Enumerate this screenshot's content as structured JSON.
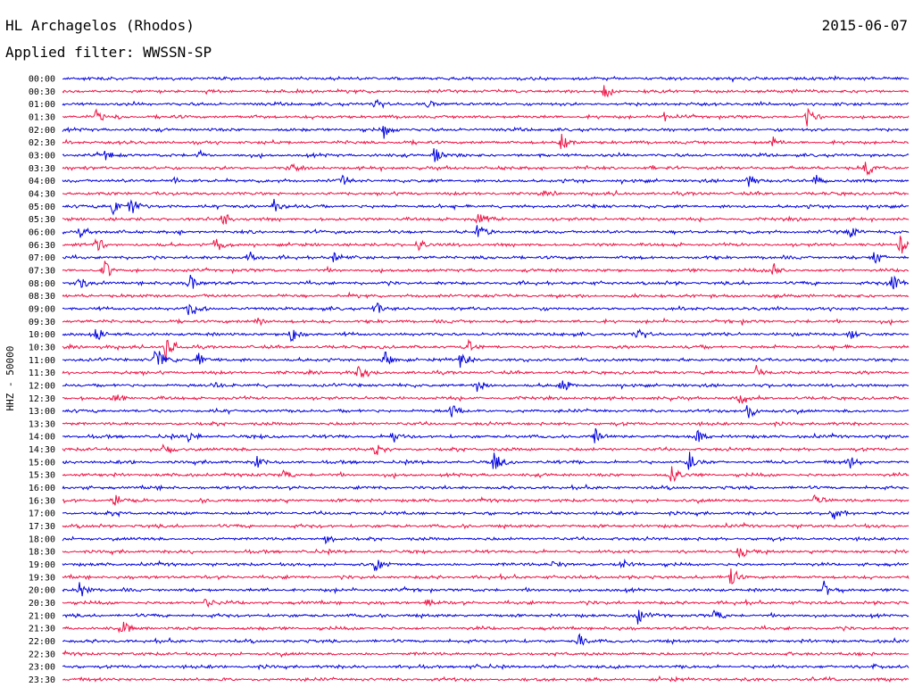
{
  "header": {
    "station": "HL Archagelos (Rhodos)",
    "date": "2015-06-07",
    "filter": "Applied filter: WWSSN-SP"
  },
  "colors": {
    "trace_odd": "#0000dd",
    "trace_even": "#ee1144",
    "background": "#ffffff"
  },
  "chart_data": {
    "type": "line",
    "ylabel": "HHZ - 50000",
    "xlabel": "",
    "grid": false,
    "legend": "none",
    "series_colors_alternate": [
      "#0000dd",
      "#ee1144"
    ],
    "rows": [
      "00:00",
      "00:30",
      "01:00",
      "01:30",
      "02:00",
      "02:30",
      "03:00",
      "03:30",
      "04:00",
      "04:30",
      "05:00",
      "05:30",
      "06:00",
      "06:30",
      "07:00",
      "07:30",
      "08:00",
      "08:30",
      "09:00",
      "09:30",
      "10:00",
      "10:30",
      "11:00",
      "11:30",
      "12:00",
      "12:30",
      "13:00",
      "13:30",
      "14:00",
      "14:30",
      "15:00",
      "15:30",
      "16:00",
      "16:30",
      "17:00",
      "17:30",
      "18:00",
      "18:30",
      "19:00",
      "19:30",
      "20:00",
      "20:30",
      "21:00",
      "21:30",
      "22:00",
      "22:30",
      "23:00",
      "23:30"
    ],
    "events": [
      {
        "row": "00:30",
        "t": 0.64,
        "amp": 0.9
      },
      {
        "row": "01:00",
        "t": 0.37,
        "amp": 0.8
      },
      {
        "row": "01:00",
        "t": 0.43,
        "amp": 0.6
      },
      {
        "row": "01:30",
        "t": 0.04,
        "amp": 0.7
      },
      {
        "row": "01:30",
        "t": 0.71,
        "amp": 0.5
      },
      {
        "row": "01:30",
        "t": 0.88,
        "amp": 1.0
      },
      {
        "row": "02:00",
        "t": 0.38,
        "amp": 1.0
      },
      {
        "row": "02:30",
        "t": 0.59,
        "amp": 1.0
      },
      {
        "row": "02:30",
        "t": 0.84,
        "amp": 0.6
      },
      {
        "row": "03:00",
        "t": 0.05,
        "amp": 0.5
      },
      {
        "row": "03:00",
        "t": 0.16,
        "amp": 0.5
      },
      {
        "row": "03:00",
        "t": 0.44,
        "amp": 0.9
      },
      {
        "row": "03:30",
        "t": 0.27,
        "amp": 0.5
      },
      {
        "row": "03:30",
        "t": 0.95,
        "amp": 1.0
      },
      {
        "row": "04:00",
        "t": 0.13,
        "amp": 0.5
      },
      {
        "row": "04:00",
        "t": 0.33,
        "amp": 0.6
      },
      {
        "row": "04:00",
        "t": 0.81,
        "amp": 0.8
      },
      {
        "row": "04:00",
        "t": 0.89,
        "amp": 0.7
      },
      {
        "row": "05:00",
        "t": 0.06,
        "amp": 0.8
      },
      {
        "row": "05:00",
        "t": 0.08,
        "amp": 1.0
      },
      {
        "row": "05:00",
        "t": 0.25,
        "amp": 0.7
      },
      {
        "row": "05:30",
        "t": 0.19,
        "amp": 0.8
      },
      {
        "row": "05:30",
        "t": 0.49,
        "amp": 0.9
      },
      {
        "row": "06:00",
        "t": 0.02,
        "amp": 0.6
      },
      {
        "row": "06:00",
        "t": 0.49,
        "amp": 1.0
      },
      {
        "row": "06:00",
        "t": 0.93,
        "amp": 0.7
      },
      {
        "row": "06:30",
        "t": 0.04,
        "amp": 0.9
      },
      {
        "row": "06:30",
        "t": 0.18,
        "amp": 0.9
      },
      {
        "row": "06:30",
        "t": 0.42,
        "amp": 0.7
      },
      {
        "row": "06:30",
        "t": 0.99,
        "amp": 1.0
      },
      {
        "row": "07:00",
        "t": 0.22,
        "amp": 0.7
      },
      {
        "row": "07:00",
        "t": 0.32,
        "amp": 0.6
      },
      {
        "row": "07:00",
        "t": 0.96,
        "amp": 0.8
      },
      {
        "row": "07:30",
        "t": 0.05,
        "amp": 0.9
      },
      {
        "row": "07:30",
        "t": 0.84,
        "amp": 0.8
      },
      {
        "row": "08:00",
        "t": 0.02,
        "amp": 0.8
      },
      {
        "row": "08:00",
        "t": 0.15,
        "amp": 1.0
      },
      {
        "row": "08:00",
        "t": 0.98,
        "amp": 0.9
      },
      {
        "row": "09:00",
        "t": 0.15,
        "amp": 1.0
      },
      {
        "row": "09:00",
        "t": 0.37,
        "amp": 0.8
      },
      {
        "row": "09:30",
        "t": 0.23,
        "amp": 0.6
      },
      {
        "row": "10:00",
        "t": 0.04,
        "amp": 0.7
      },
      {
        "row": "10:00",
        "t": 0.27,
        "amp": 0.9
      },
      {
        "row": "10:00",
        "t": 0.68,
        "amp": 0.9
      },
      {
        "row": "10:00",
        "t": 0.93,
        "amp": 0.8
      },
      {
        "row": "10:30",
        "t": 0.12,
        "amp": 1.8
      },
      {
        "row": "10:30",
        "t": 0.48,
        "amp": 0.7
      },
      {
        "row": "11:00",
        "t": 0.11,
        "amp": 1.4
      },
      {
        "row": "11:00",
        "t": 0.16,
        "amp": 0.8
      },
      {
        "row": "11:00",
        "t": 0.38,
        "amp": 0.9
      },
      {
        "row": "11:00",
        "t": 0.47,
        "amp": 0.9
      },
      {
        "row": "11:30",
        "t": 0.35,
        "amp": 0.8
      },
      {
        "row": "11:30",
        "t": 0.82,
        "amp": 0.7
      },
      {
        "row": "12:00",
        "t": 0.18,
        "amp": 0.6
      },
      {
        "row": "12:00",
        "t": 0.49,
        "amp": 0.7
      },
      {
        "row": "12:00",
        "t": 0.59,
        "amp": 0.8
      },
      {
        "row": "12:30",
        "t": 0.06,
        "amp": 0.8
      },
      {
        "row": "12:30",
        "t": 0.8,
        "amp": 0.9
      },
      {
        "row": "13:00",
        "t": 0.46,
        "amp": 0.8
      },
      {
        "row": "13:00",
        "t": 0.81,
        "amp": 0.9
      },
      {
        "row": "14:00",
        "t": 0.15,
        "amp": 0.7
      },
      {
        "row": "14:00",
        "t": 0.39,
        "amp": 0.8
      },
      {
        "row": "14:00",
        "t": 0.63,
        "amp": 0.9
      },
      {
        "row": "14:00",
        "t": 0.75,
        "amp": 0.8
      },
      {
        "row": "14:30",
        "t": 0.12,
        "amp": 0.8
      },
      {
        "row": "14:30",
        "t": 0.37,
        "amp": 0.7
      },
      {
        "row": "15:00",
        "t": 0.23,
        "amp": 0.8
      },
      {
        "row": "15:00",
        "t": 0.51,
        "amp": 1.0
      },
      {
        "row": "15:00",
        "t": 0.74,
        "amp": 1.2
      },
      {
        "row": "15:00",
        "t": 0.93,
        "amp": 0.7
      },
      {
        "row": "15:30",
        "t": 0.26,
        "amp": 0.7
      },
      {
        "row": "15:30",
        "t": 0.72,
        "amp": 1.0
      },
      {
        "row": "16:30",
        "t": 0.06,
        "amp": 0.8
      },
      {
        "row": "16:30",
        "t": 0.89,
        "amp": 0.9
      },
      {
        "row": "17:00",
        "t": 0.91,
        "amp": 0.8
      },
      {
        "row": "18:00",
        "t": 0.31,
        "amp": 0.6
      },
      {
        "row": "18:30",
        "t": 0.8,
        "amp": 0.8
      },
      {
        "row": "19:00",
        "t": 0.37,
        "amp": 0.8
      },
      {
        "row": "19:00",
        "t": 0.58,
        "amp": 0.8
      },
      {
        "row": "19:00",
        "t": 0.66,
        "amp": 0.7
      },
      {
        "row": "19:30",
        "t": 0.79,
        "amp": 0.9
      },
      {
        "row": "20:00",
        "t": 0.02,
        "amp": 0.8
      },
      {
        "row": "20:00",
        "t": 0.9,
        "amp": 0.8
      },
      {
        "row": "20:30",
        "t": 0.17,
        "amp": 0.7
      },
      {
        "row": "20:30",
        "t": 0.43,
        "amp": 0.7
      },
      {
        "row": "21:00",
        "t": 0.68,
        "amp": 0.8
      },
      {
        "row": "21:00",
        "t": 0.77,
        "amp": 0.7
      },
      {
        "row": "21:30",
        "t": 0.07,
        "amp": 0.9
      },
      {
        "row": "22:00",
        "t": 0.61,
        "amp": 0.7
      },
      {
        "row": "23:00",
        "t": 0.96,
        "amp": 0.3
      }
    ]
  }
}
